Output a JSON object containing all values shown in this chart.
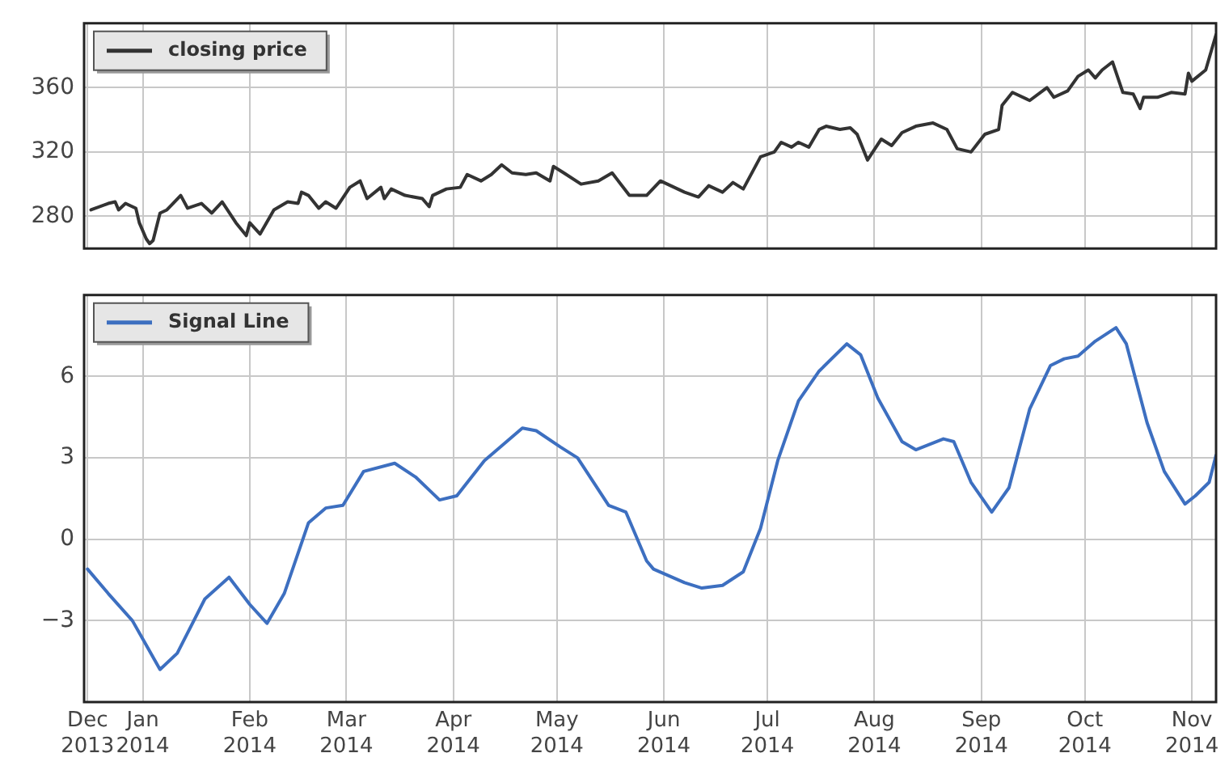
{
  "chart_data": [
    {
      "type": "line",
      "legend": "top left",
      "grid": true,
      "tick_labels": "y",
      "marker": "none",
      "line_style": "solid",
      "xlim": [
        "2013-12-15",
        "2014-11-08"
      ],
      "ylim": [
        260,
        400
      ],
      "yticks": [
        {
          "value": 280,
          "label": "280"
        },
        {
          "value": 320,
          "label": "320"
        },
        {
          "value": 360,
          "label": "360"
        },
        {
          "value": 400,
          "label": null
        }
      ],
      "xticks": [
        {
          "value": "2013-12-16",
          "label": null
        },
        {
          "value": "2014-01-01",
          "label": null
        },
        {
          "value": "2014-02-01",
          "label": null
        },
        {
          "value": "2014-03-01",
          "label": null
        },
        {
          "value": "2014-04-01",
          "label": null
        },
        {
          "value": "2014-05-01",
          "label": null
        },
        {
          "value": "2014-06-01",
          "label": null
        },
        {
          "value": "2014-07-01",
          "label": null
        },
        {
          "value": "2014-08-01",
          "label": null
        },
        {
          "value": "2014-09-01",
          "label": null
        },
        {
          "value": "2014-10-01",
          "label": null
        },
        {
          "value": "2014-11-01",
          "label": null
        }
      ],
      "series": [
        {
          "name": "closing price",
          "color": "#333333",
          "x": [
            "2013-12-17",
            "2013-12-22",
            "2013-12-24",
            "2013-12-25",
            "2013-12-27",
            "2013-12-30",
            "2013-12-31",
            "2014-01-02",
            "2014-01-03",
            "2014-01-04",
            "2014-01-06",
            "2014-01-08",
            "2014-01-12",
            "2014-01-14",
            "2014-01-18",
            "2014-01-21",
            "2014-01-24",
            "2014-01-28",
            "2014-01-31",
            "2014-02-01",
            "2014-02-04",
            "2014-02-08",
            "2014-02-12",
            "2014-02-15",
            "2014-02-16",
            "2014-02-18",
            "2014-02-21",
            "2014-02-23",
            "2014-02-26",
            "2014-03-02",
            "2014-03-05",
            "2014-03-07",
            "2014-03-11",
            "2014-03-12",
            "2014-03-14",
            "2014-03-18",
            "2014-03-23",
            "2014-03-25",
            "2014-03-26",
            "2014-03-30",
            "2014-04-03",
            "2014-04-05",
            "2014-04-09",
            "2014-04-12",
            "2014-04-15",
            "2014-04-18",
            "2014-04-22",
            "2014-04-25",
            "2014-04-29",
            "2014-04-30",
            "2014-05-03",
            "2014-05-08",
            "2014-05-13",
            "2014-05-17",
            "2014-05-22",
            "2014-05-27",
            "2014-05-31",
            "2014-06-07",
            "2014-06-11",
            "2014-06-14",
            "2014-06-18",
            "2014-06-21",
            "2014-06-24",
            "2014-06-29",
            "2014-07-03",
            "2014-07-05",
            "2014-07-08",
            "2014-07-10",
            "2014-07-13",
            "2014-07-16",
            "2014-07-18",
            "2014-07-22",
            "2014-07-25",
            "2014-07-27",
            "2014-07-30",
            "2014-08-03",
            "2014-08-06",
            "2014-08-09",
            "2014-08-13",
            "2014-08-18",
            "2014-08-22",
            "2014-08-25",
            "2014-08-29",
            "2014-09-02",
            "2014-09-06",
            "2014-09-07",
            "2014-09-10",
            "2014-09-15",
            "2014-09-20",
            "2014-09-22",
            "2014-09-26",
            "2014-09-29",
            "2014-10-02",
            "2014-10-04",
            "2014-10-06",
            "2014-10-09",
            "2014-10-12",
            "2014-10-15",
            "2014-10-17",
            "2014-10-18",
            "2014-10-22",
            "2014-10-26",
            "2014-10-30",
            "2014-10-31",
            "2014-11-01",
            "2014-11-05",
            "2014-11-08"
          ],
          "values": [
            284,
            288,
            289,
            284,
            288,
            285,
            276,
            266,
            263,
            265,
            282,
            284,
            293,
            285,
            288,
            282,
            289,
            276,
            268,
            276,
            269,
            284,
            289,
            288,
            295,
            293,
            285,
            289,
            285,
            298,
            302,
            291,
            298,
            291,
            297,
            293,
            291,
            286,
            293,
            297,
            298,
            306,
            302,
            306,
            312,
            307,
            306,
            307,
            302,
            311,
            307,
            300,
            302,
            307,
            293,
            293,
            302,
            295,
            292,
            299,
            295,
            301,
            297,
            317,
            320,
            326,
            323,
            326,
            323,
            334,
            336,
            334,
            335,
            331,
            315,
            328,
            324,
            332,
            336,
            338,
            334,
            322,
            320,
            331,
            334,
            349,
            357,
            352,
            360,
            354,
            358,
            367,
            371,
            366,
            371,
            376,
            357,
            356,
            347,
            354,
            354,
            357,
            356,
            369,
            364,
            371,
            393
          ]
        }
      ]
    },
    {
      "type": "line",
      "legend": "top left",
      "grid": true,
      "marker": "none",
      "line_style": "solid",
      "xlim": [
        "2013-12-15",
        "2014-11-08"
      ],
      "ylim": [
        -6,
        9
      ],
      "yticks": [
        {
          "value": -6,
          "label": null
        },
        -3,
        0,
        3,
        6,
        {
          "value": 9,
          "label": null
        }
      ],
      "xticks": [
        {
          "value": "2013-12-16",
          "label": "Dec 2013"
        },
        {
          "value": "2014-01-01",
          "label": "Jan 2014"
        },
        {
          "value": "2014-02-01",
          "label": "Feb 2014"
        },
        {
          "value": "2014-03-01",
          "label": "Mar 2014"
        },
        {
          "value": "2014-04-01",
          "label": "Apr 2014"
        },
        {
          "value": "2014-05-01",
          "label": "May 2014"
        },
        {
          "value": "2014-06-01",
          "label": "Jun 2014"
        },
        {
          "value": "2014-07-01",
          "label": "Jul 2014"
        },
        {
          "value": "2014-08-01",
          "label": "Aug 2014"
        },
        {
          "value": "2014-09-01",
          "label": "Sep 2014"
        },
        {
          "value": "2014-10-01",
          "label": "Oct 2014"
        },
        {
          "value": "2014-11-01",
          "label": "Nov 2014"
        }
      ],
      "series": [
        {
          "name": "Signal Line",
          "color": "#3d6fc0",
          "x": [
            "2013-12-16",
            "2013-12-22",
            "2013-12-29",
            "2014-01-02",
            "2014-01-06",
            "2014-01-11",
            "2014-01-19",
            "2014-01-26",
            "2014-02-01",
            "2014-02-06",
            "2014-02-11",
            "2014-02-18",
            "2014-02-23",
            "2014-02-28",
            "2014-03-06",
            "2014-03-15",
            "2014-03-21",
            "2014-03-28",
            "2014-04-02",
            "2014-04-10",
            "2014-04-21",
            "2014-04-25",
            "2014-05-02",
            "2014-05-07",
            "2014-05-16",
            "2014-05-21",
            "2014-05-27",
            "2014-05-29",
            "2014-06-07",
            "2014-06-12",
            "2014-06-18",
            "2014-06-24",
            "2014-06-29",
            "2014-07-04",
            "2014-07-10",
            "2014-07-16",
            "2014-07-24",
            "2014-07-28",
            "2014-08-02",
            "2014-08-09",
            "2014-08-13",
            "2014-08-21",
            "2014-08-24",
            "2014-08-29",
            "2014-09-04",
            "2014-09-09",
            "2014-09-15",
            "2014-09-21",
            "2014-09-25",
            "2014-09-29",
            "2014-10-04",
            "2014-10-10",
            "2014-10-13",
            "2014-10-19",
            "2014-10-24",
            "2014-10-30",
            "2014-11-02",
            "2014-11-06",
            "2014-11-08"
          ],
          "values": [
            -1.1,
            -2.0,
            -3.0,
            -3.9,
            -4.8,
            -4.2,
            -2.2,
            -1.4,
            -2.4,
            -3.1,
            -2.0,
            0.6,
            1.15,
            1.25,
            2.5,
            2.8,
            2.3,
            1.45,
            1.6,
            2.9,
            4.1,
            4.0,
            3.4,
            3.0,
            1.25,
            1.0,
            -0.8,
            -1.1,
            -1.6,
            -1.8,
            -1.7,
            -1.2,
            0.4,
            2.9,
            5.1,
            6.2,
            7.2,
            6.8,
            5.2,
            3.6,
            3.3,
            3.7,
            3.6,
            2.1,
            1.0,
            1.9,
            4.8,
            6.4,
            6.65,
            6.75,
            7.3,
            7.8,
            7.2,
            4.3,
            2.5,
            1.3,
            1.6,
            2.1,
            3.1
          ]
        }
      ]
    }
  ]
}
